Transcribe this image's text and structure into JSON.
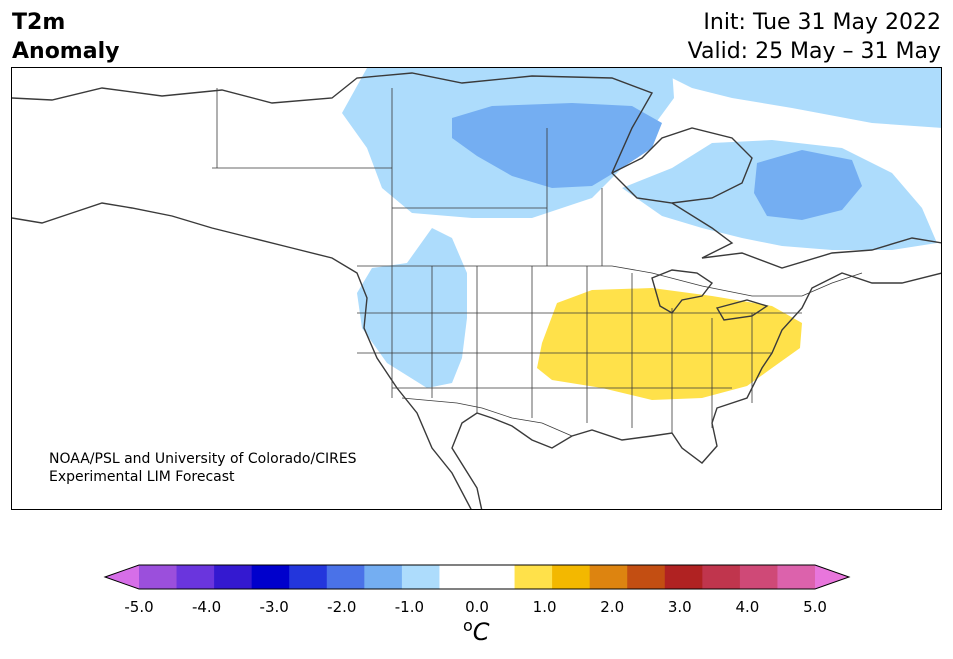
{
  "title": {
    "left_line1": "T2m",
    "left_line2": "Anomaly",
    "right_line1": "Init: Tue 31 May 2022",
    "right_line2": "Valid: 25 May – 31 May"
  },
  "credit": {
    "line1": "NOAA/PSL and University of Colorado/CIRES",
    "line2": "Experimental LIM Forecast"
  },
  "colorbar": {
    "unit_base": "C",
    "unit_sup": "o",
    "tick_labels": [
      "-5.0",
      "-4.0",
      "-3.0",
      "-2.0",
      "-1.0",
      "0.0",
      "1.0",
      "2.0",
      "3.0",
      "4.0",
      "5.0"
    ],
    "colors": [
      "#d66ee8",
      "#9b4fdc",
      "#6a35dd",
      "#3419d0",
      "#0000cc",
      "#2336dc",
      "#4a72e8",
      "#74aef2",
      "#addcfc",
      "#ffffff",
      "#ffffff",
      "#ffe14a",
      "#f3b800",
      "#dd8410",
      "#c34e12",
      "#b02222",
      "#c0354d",
      "#cf4977",
      "#dc62ac",
      "#e876dc"
    ]
  },
  "map_colors": {
    "cold_light": "#addcfc",
    "cold_mid": "#74aef2",
    "warm": "#ffe14a",
    "coast": "#3a3a3a"
  }
}
